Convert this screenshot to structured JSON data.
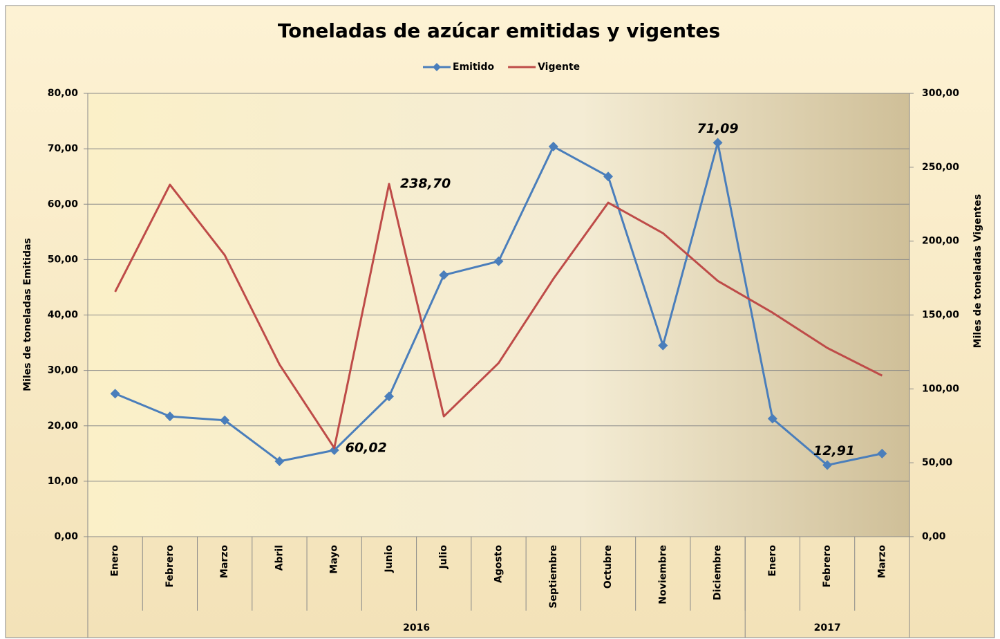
{
  "chart_data": {
    "type": "line",
    "title": "Toneladas de azúcar emitidas y vigentes",
    "y_label": "Miles de toneladas Emitidas",
    "y2_label": "Miles de toneladas Vigentes",
    "categories": [
      "Enero",
      "Febrero",
      "Marzo",
      "Abril",
      "Mayo",
      "Junio",
      "Julio",
      "Agosto",
      "Septiembre",
      "Octubre",
      "Noviembre",
      "Diciembre",
      "Enero",
      "Febrero",
      "Marzo"
    ],
    "groups": [
      {
        "label": "2016",
        "span": 12
      },
      {
        "label": "2017",
        "span": 3
      }
    ],
    "series": [
      {
        "name": "Emitido",
        "color": "#4a7ebb",
        "marker": "diamond",
        "values": [
          25.8,
          21.7,
          21.0,
          13.6,
          15.6,
          25.3,
          47.2,
          49.7,
          70.4,
          65.0,
          34.5,
          71.09,
          21.3,
          12.91,
          15.0
        ],
        "value_labels": [
          null,
          null,
          null,
          null,
          null,
          null,
          null,
          null,
          null,
          null,
          null,
          "71,09",
          null,
          "12,91",
          null
        ]
      },
      {
        "name": "Vigente",
        "color": "#be4b48",
        "axis": "y2",
        "values": [
          165.7,
          238.2,
          190.5,
          116.5,
          60.02,
          238.7,
          81.4,
          117.5,
          174.5,
          226.0,
          205.4,
          173.1,
          151.6,
          127.7,
          109.0
        ],
        "value_labels": [
          null,
          null,
          null,
          null,
          "60,02",
          "238,70",
          null,
          null,
          null,
          null,
          null,
          null,
          null,
          null,
          null
        ]
      }
    ],
    "ylim": [
      0,
      80
    ],
    "yticks": [
      {
        "value": 0,
        "label": "0,00"
      },
      {
        "value": 10,
        "label": "10,00"
      },
      {
        "value": 20,
        "label": "20,00"
      },
      {
        "value": 30,
        "label": "30,00"
      },
      {
        "value": 40,
        "label": "40,00"
      },
      {
        "value": 50,
        "label": "50,00"
      },
      {
        "value": 60,
        "label": "60,00"
      },
      {
        "value": 70,
        "label": "70,00"
      },
      {
        "value": 80,
        "label": "80,00"
      }
    ],
    "y2lim": [
      0,
      300
    ],
    "y2ticks": [
      {
        "value": 0,
        "label": "0,00"
      },
      {
        "value": 50,
        "label": "50,00"
      },
      {
        "value": 100,
        "label": "100,00"
      },
      {
        "value": 150,
        "label": "150,00"
      },
      {
        "value": 200,
        "label": "200,00"
      },
      {
        "value": 250,
        "label": "250,00"
      },
      {
        "value": 300,
        "label": "300,00"
      }
    ],
    "grid": true,
    "legend": "top"
  }
}
